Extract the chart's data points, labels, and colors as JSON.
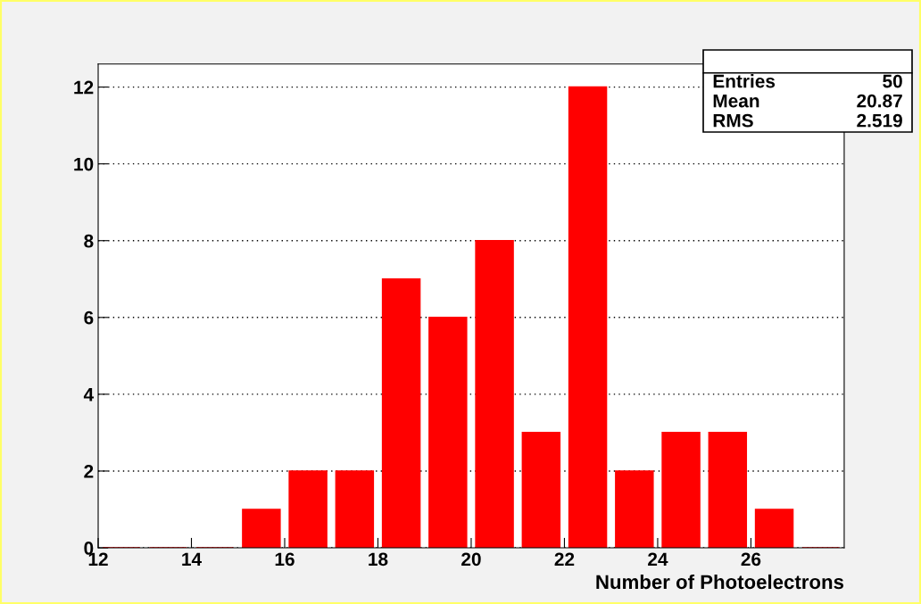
{
  "chart_data": {
    "type": "histogram",
    "xlabel": "Number of Photoelectrons",
    "bins": [
      12,
      13,
      14,
      15,
      16,
      17,
      18,
      19,
      20,
      21,
      22,
      23,
      24,
      25,
      26,
      27,
      28
    ],
    "values": [
      0,
      0,
      0,
      1,
      2,
      2,
      7,
      6,
      8,
      3,
      12,
      2,
      3,
      3,
      1,
      0
    ],
    "color": "#ff0000",
    "xlim": [
      12,
      28
    ],
    "xticks": [
      12,
      14,
      16,
      18,
      20,
      22,
      24,
      26
    ],
    "ylim": [
      0,
      12.6
    ],
    "yticks": [
      0,
      2,
      4,
      6,
      8,
      10,
      12
    ],
    "grid": "y",
    "annotations": [
      "Entries",
      "50",
      "Mean",
      "20.87",
      "RMS",
      "2.519"
    ]
  }
}
